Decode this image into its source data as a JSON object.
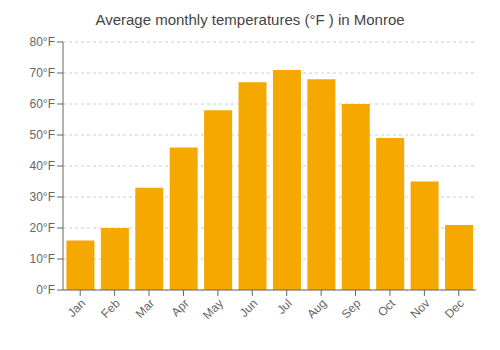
{
  "chart_data": {
    "type": "bar",
    "title": "Average monthly temperatures (°F ) in Monroe",
    "categories": [
      "Jan",
      "Feb",
      "Mar",
      "Apr",
      "May",
      "Jun",
      "Jul",
      "Aug",
      "Sep",
      "Oct",
      "Nov",
      "Dec"
    ],
    "values": [
      16,
      20,
      33,
      46,
      58,
      67,
      71,
      68,
      60,
      49,
      35,
      21
    ],
    "color": "#F5A800",
    "ylim": [
      0,
      80
    ],
    "yticks": [
      {
        "value": 0,
        "label": "0°F"
      },
      {
        "value": 10,
        "label": "10°F"
      },
      {
        "value": 20,
        "label": "20°F"
      },
      {
        "value": 30,
        "label": "30°F"
      },
      {
        "value": 40,
        "label": "40°F"
      },
      {
        "value": 50,
        "label": "50°F"
      },
      {
        "value": 60,
        "label": "60°F"
      },
      {
        "value": 70,
        "label": "70°F"
      },
      {
        "value": 80,
        "label": "80°F"
      }
    ],
    "grid": true
  }
}
